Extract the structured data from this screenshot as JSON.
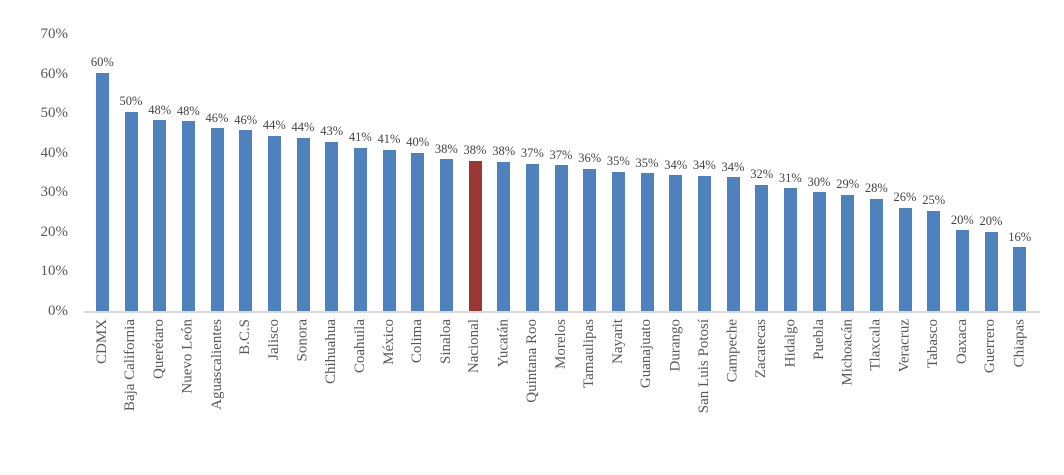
{
  "chart_data": {
    "type": "bar",
    "title": "",
    "xlabel": "",
    "ylabel": "",
    "grid": false,
    "legend": false,
    "categories": [
      "CDMX",
      "Baja California",
      "Querétaro",
      "Nuevo León",
      "Aguascalientes",
      "B.C.S",
      "Jalisco",
      "Sonora",
      "Chihuahua",
      "Coahuila",
      "México",
      "Colima",
      "Sinaloa",
      "Nacional",
      "Yucatán",
      "Quintana Roo",
      "Morelos",
      "Tamaulipas",
      "Nayarit",
      "Guanajuato",
      "Durango",
      "San Luis Potosí",
      "Campeche",
      "Zacatecas",
      "Hidalgo",
      "Puebla",
      "Michoacán",
      "Tlaxcala",
      "Veracruz",
      "Tabasco",
      "Oaxaca",
      "Guerrero",
      "Chiapas"
    ],
    "values": [
      60,
      50,
      48,
      48,
      46,
      46,
      44,
      44,
      43,
      41,
      41,
      40,
      38,
      38,
      38,
      37,
      37,
      36,
      35,
      35,
      34,
      34,
      34,
      32,
      31,
      30,
      29,
      28,
      26,
      25,
      20,
      20,
      16
    ],
    "values_exact": [
      60.3,
      50.4,
      48.3,
      48.0,
      46.3,
      45.8,
      44.4,
      43.8,
      42.9,
      41.3,
      40.8,
      40.1,
      38.4,
      38.1,
      37.8,
      37.3,
      36.9,
      36.0,
      35.3,
      34.9,
      34.4,
      34.2,
      33.9,
      32.0,
      31.1,
      30.1,
      29.4,
      28.4,
      26.2,
      25.4,
      20.4,
      20.1,
      16.2
    ],
    "value_label_suffix": "%",
    "bar_color": "#4F81BD",
    "highlight": {
      "category": "Nacional",
      "index": 13,
      "color": "#993734"
    },
    "y_axis": {
      "min": 0,
      "max": 70,
      "tick_step": 10,
      "tick_labels": [
        "0%",
        "10%",
        "20%",
        "30%",
        "40%",
        "50%",
        "60%",
        "70%"
      ]
    }
  },
  "colors": {
    "background": "#FFFFFF",
    "axis_line": "#D9D9D9",
    "axis_tick_text": "#595959",
    "category_text": "#595959",
    "value_label_text": "#454545"
  }
}
